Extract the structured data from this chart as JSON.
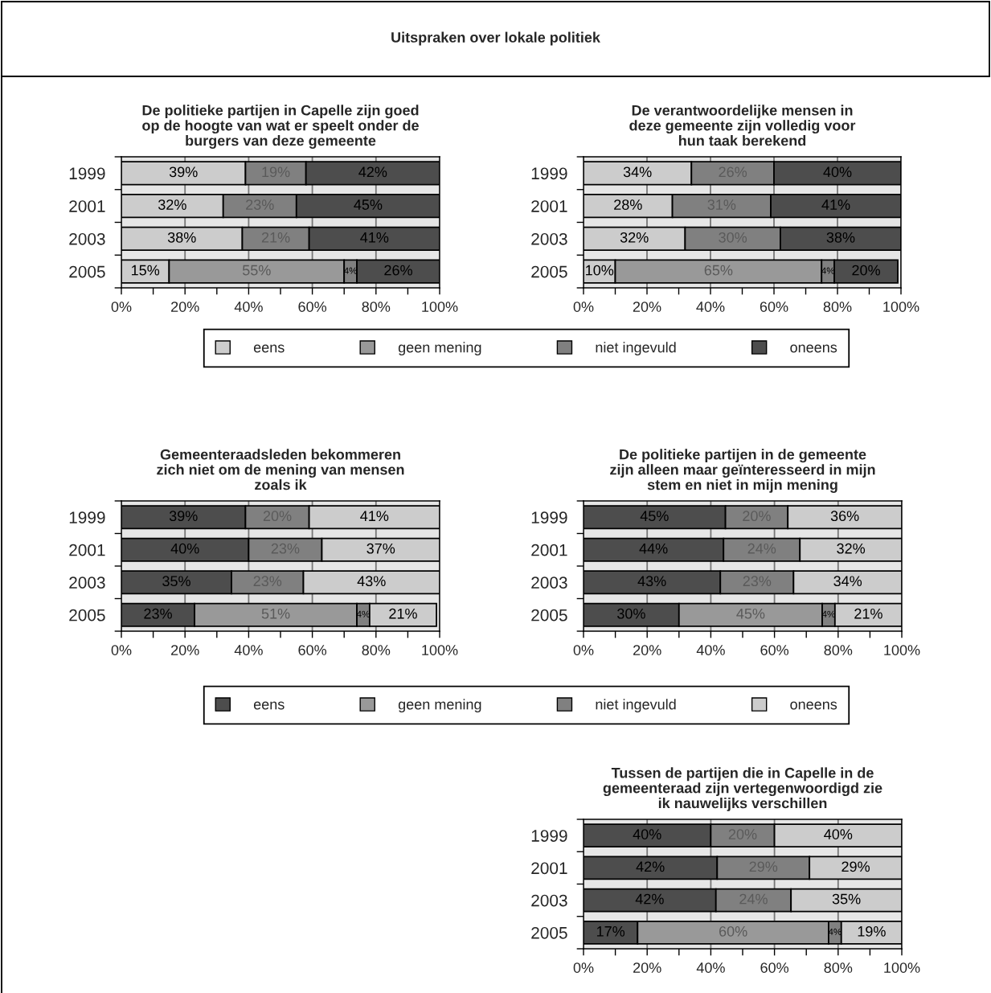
{
  "chart_data": [
    {
      "type": "bar",
      "orientation": "horizontal",
      "stacked": true,
      "title": "De politieke partijen in Capelle zijn goed\nop de hoogte van wat er speelt onder de\nburgers van deze gemeente",
      "annotations": [
        "Uitspraken over lokale politiek"
      ],
      "categories": [
        "1999",
        "2001",
        "2003",
        "2005"
      ],
      "xlim": [
        0,
        100
      ],
      "xticks": [
        {
          "value": 0,
          "label": "0%"
        },
        {
          "value": 10,
          "label": null
        },
        {
          "value": 20,
          "label": "20%"
        },
        {
          "value": 30,
          "label": null
        },
        {
          "value": 40,
          "label": "40%"
        },
        {
          "value": 50,
          "label": null
        },
        {
          "value": 60,
          "label": "60%"
        },
        {
          "value": 70,
          "label": null
        },
        {
          "value": 80,
          "label": "80%"
        },
        {
          "value": 90,
          "label": null
        },
        {
          "value": 100,
          "label": "100%"
        }
      ],
      "grid": "x",
      "legend": "bottom",
      "series": [
        {
          "name": "eens",
          "color": "#cccccc",
          "values": [
            39,
            32,
            38,
            15
          ],
          "value_labels": [
            "39%",
            "32%",
            "38%",
            "15%"
          ]
        },
        {
          "name": "geen mening",
          "color": "#999999",
          "values": [
            null,
            null,
            null,
            55
          ],
          "value_labels": [
            null,
            null,
            null,
            "55%"
          ]
        },
        {
          "name": "niet ingevuld",
          "color": "#808080",
          "values": [
            19,
            23,
            21,
            4
          ],
          "value_labels": [
            "19%",
            "23%",
            "21%",
            "4%"
          ]
        },
        {
          "name": "oneens",
          "color": "#4d4d4d",
          "values": [
            42,
            45,
            41,
            26
          ],
          "value_labels": [
            "42%",
            "45%",
            "41%",
            "26%"
          ]
        }
      ]
    },
    {
      "type": "bar",
      "orientation": "horizontal",
      "stacked": true,
      "title": "De verantwoordelijke mensen in\ndeze gemeente zijn volledig voor\nhun taak berekend",
      "categories": [
        "1999",
        "2001",
        "2003",
        "2005"
      ],
      "xlim": [
        0,
        100
      ],
      "xticks": [
        {
          "value": 0,
          "label": "0%"
        },
        {
          "value": 10,
          "label": null
        },
        {
          "value": 20,
          "label": "20%"
        },
        {
          "value": 30,
          "label": null
        },
        {
          "value": 40,
          "label": "40%"
        },
        {
          "value": 50,
          "label": null
        },
        {
          "value": 60,
          "label": "60%"
        },
        {
          "value": 70,
          "label": null
        },
        {
          "value": 80,
          "label": "80%"
        },
        {
          "value": 90,
          "label": null
        },
        {
          "value": 100,
          "label": "100%"
        }
      ],
      "grid": "x",
      "series": [
        {
          "color": "#cccccc",
          "values": [
            34,
            28,
            32,
            10
          ],
          "value_labels": [
            "34%",
            "28%",
            "32%",
            "10%"
          ]
        },
        {
          "color": "#999999",
          "values": [
            null,
            null,
            null,
            65
          ],
          "value_labels": [
            null,
            null,
            null,
            "65%"
          ]
        },
        {
          "color": "#808080",
          "values": [
            26,
            31,
            30,
            4
          ],
          "value_labels": [
            "26%",
            "31%",
            "30%",
            "4%"
          ]
        },
        {
          "color": "#4d4d4d",
          "values": [
            40,
            41,
            38,
            20
          ],
          "value_labels": [
            "40%",
            "41%",
            "38%",
            "20%"
          ]
        }
      ]
    },
    {
      "type": "bar",
      "orientation": "horizontal",
      "stacked": true,
      "title": "Gemeenteraadsleden bekommeren\nzich niet om de mening van mensen\nzoals ik",
      "categories": [
        "1999",
        "2001",
        "2003",
        "2005"
      ],
      "xlim": [
        0,
        100
      ],
      "xticks": [
        {
          "value": 0,
          "label": "0%"
        },
        {
          "value": 10,
          "label": null
        },
        {
          "value": 20,
          "label": "20%"
        },
        {
          "value": 30,
          "label": null
        },
        {
          "value": 40,
          "label": "40%"
        },
        {
          "value": 50,
          "label": null
        },
        {
          "value": 60,
          "label": "60%"
        },
        {
          "value": 70,
          "label": null
        },
        {
          "value": 80,
          "label": "80%"
        },
        {
          "value": 90,
          "label": null
        },
        {
          "value": 100,
          "label": "100%"
        }
      ],
      "grid": "x",
      "legend": "bottom",
      "series": [
        {
          "name": "eens",
          "color": "#4d4d4d",
          "values": [
            39,
            40,
            34.6,
            23
          ],
          "value_labels": [
            "39%",
            "40%",
            "35%",
            "23%"
          ]
        },
        {
          "name": "geen mening",
          "color": "#999999",
          "values": [
            null,
            null,
            null,
            51
          ],
          "value_labels": [
            null,
            null,
            null,
            "51%"
          ]
        },
        {
          "name": "niet ingevuld",
          "color": "#808080",
          "values": [
            20,
            23,
            22.6,
            4
          ],
          "value_labels": [
            "20%",
            "23%",
            "23%",
            "4%"
          ]
        },
        {
          "name": "oneens",
          "color": "#cccccc",
          "values": [
            41,
            37,
            42.8,
            21
          ],
          "value_labels": [
            "41%",
            "37%",
            "43%",
            "21%"
          ]
        }
      ]
    },
    {
      "type": "bar",
      "orientation": "horizontal",
      "stacked": true,
      "title": "De politieke partijen in de gemeente\nzijn alleen maar geïnteresseerd in mijn\nstem en niet in mijn mening",
      "categories": [
        "1999",
        "2001",
        "2003",
        "2005"
      ],
      "xlim": [
        0,
        100
      ],
      "xticks": [
        {
          "value": 0,
          "label": "0%"
        },
        {
          "value": 10,
          "label": null
        },
        {
          "value": 20,
          "label": "20%"
        },
        {
          "value": 30,
          "label": null
        },
        {
          "value": 40,
          "label": "40%"
        },
        {
          "value": 50,
          "label": null
        },
        {
          "value": 60,
          "label": "60%"
        },
        {
          "value": 70,
          "label": null
        },
        {
          "value": 80,
          "label": "80%"
        },
        {
          "value": 90,
          "label": null
        },
        {
          "value": 100,
          "label": "100%"
        }
      ],
      "grid": "x",
      "series": [
        {
          "color": "#4d4d4d",
          "values": [
            44.6,
            44,
            43,
            30
          ],
          "value_labels": [
            "45%",
            "44%",
            "43%",
            "30%"
          ]
        },
        {
          "color": "#999999",
          "values": [
            null,
            null,
            null,
            45
          ],
          "value_labels": [
            null,
            null,
            null,
            "45%"
          ]
        },
        {
          "color": "#808080",
          "values": [
            19.6,
            24,
            23,
            4
          ],
          "value_labels": [
            "20%",
            "24%",
            "23%",
            "4%"
          ]
        },
        {
          "color": "#cccccc",
          "values": [
            35.8,
            32,
            34,
            21
          ],
          "value_labels": [
            "36%",
            "32%",
            "34%",
            "21%"
          ]
        }
      ]
    },
    {
      "type": "bar",
      "orientation": "horizontal",
      "stacked": true,
      "title": "Tussen de partijen die in Capelle in de\ngemeenteraad zijn vertegenwoordigd zie\nik nauwelijks verschillen",
      "categories": [
        "1999",
        "2001",
        "2003",
        "2005"
      ],
      "xlim": [
        0,
        100
      ],
      "xticks": [
        {
          "value": 0,
          "label": "0%"
        },
        {
          "value": 10,
          "label": null
        },
        {
          "value": 20,
          "label": "20%"
        },
        {
          "value": 30,
          "label": null
        },
        {
          "value": 40,
          "label": "40%"
        },
        {
          "value": 50,
          "label": null
        },
        {
          "value": 60,
          "label": "60%"
        },
        {
          "value": 70,
          "label": null
        },
        {
          "value": 80,
          "label": "80%"
        },
        {
          "value": 90,
          "label": null
        },
        {
          "value": 100,
          "label": "100%"
        }
      ],
      "grid": "x",
      "series": [
        {
          "color": "#4d4d4d",
          "values": [
            40,
            42,
            41.6,
            17
          ],
          "value_labels": [
            "40%",
            "42%",
            "42%",
            "17%"
          ]
        },
        {
          "color": "#999999",
          "values": [
            null,
            null,
            null,
            60
          ],
          "value_labels": [
            null,
            null,
            null,
            "60%"
          ]
        },
        {
          "color": "#808080",
          "values": [
            20,
            29,
            23.6,
            4
          ],
          "value_labels": [
            "20%",
            "29%",
            "24%",
            "4%"
          ]
        },
        {
          "color": "#cccccc",
          "values": [
            40,
            29,
            34.8,
            19
          ],
          "value_labels": [
            "40%",
            "29%",
            "35%",
            "19%"
          ]
        }
      ]
    }
  ]
}
